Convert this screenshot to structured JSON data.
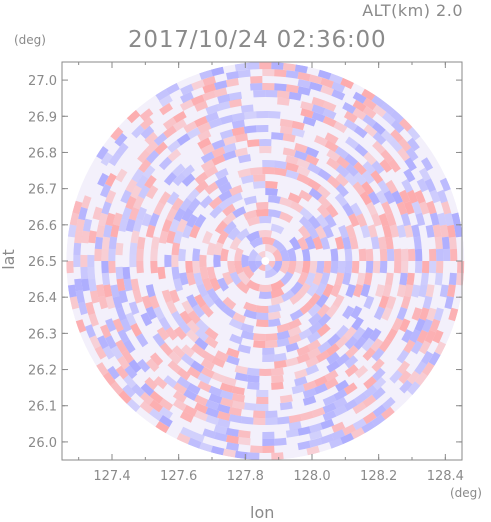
{
  "header": {
    "altitude_label": "ALT(km) 2.0",
    "timestamp": "2017/10/24 02:36:00"
  },
  "chart_data": {
    "type": "heatmap",
    "title": "2017/10/24 02:36:00",
    "subtitle": "ALT(km) 2.0",
    "xlabel": "lon",
    "ylabel": "lat",
    "x_unit": "(deg)",
    "y_unit": "(deg)",
    "xlim": [
      127.25,
      128.45
    ],
    "ylim": [
      25.95,
      27.05
    ],
    "x_ticks": [
      "127.4",
      "127.6",
      "127.8",
      "128.0",
      "128.2",
      "128.4"
    ],
    "y_ticks": [
      "26.0",
      "26.1",
      "26.2",
      "26.3",
      "26.4",
      "26.5",
      "26.6",
      "26.7",
      "26.8",
      "26.9",
      "27.0"
    ],
    "radar_center": {
      "lon": 127.86,
      "lat": 26.5
    },
    "radar_radius_deg_lat": 0.55,
    "grid": false,
    "colors": {
      "positive": "#ff9a9a",
      "negative": "#9a9aff",
      "neutral": "#f3f0fb",
      "axis": "#8a8a8a"
    }
  }
}
